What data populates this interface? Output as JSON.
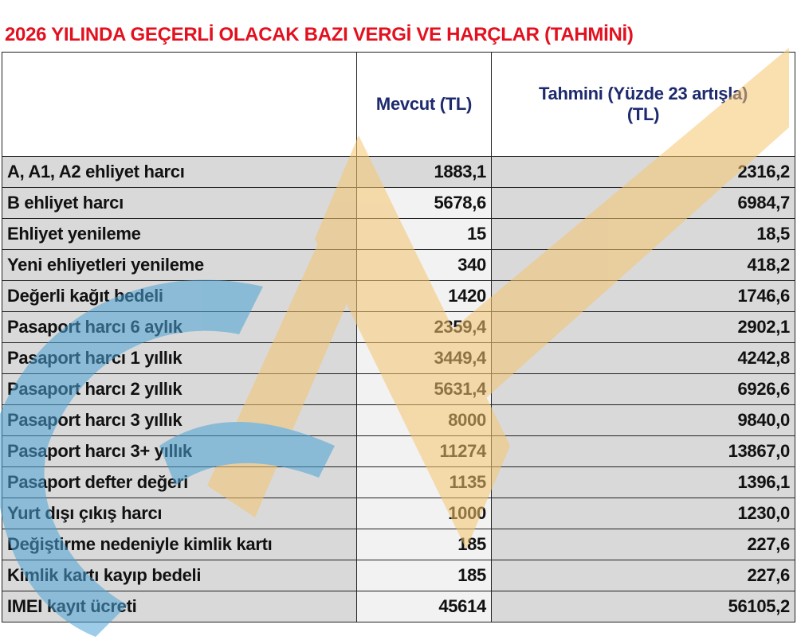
{
  "title": "2026 YILINDA GEÇERLİ OLACAK BAZI VERGİ VE HARÇLAR (TAHMİNİ)",
  "headers": {
    "label": "",
    "current": "Mevcut (TL)",
    "estimate_line1": "Tahmini  (Yüzde 23 artışla)",
    "estimate_line2": "(TL)"
  },
  "rows": [
    {
      "label": "A, A1, A2 ehliyet harcı",
      "current": "1883,1",
      "estimate": "2316,2"
    },
    {
      "label": "B ehliyet harcı",
      "current": "5678,6",
      "estimate": "6984,7"
    },
    {
      "label": "Ehliyet yenileme",
      "current": "15",
      "estimate": "18,5"
    },
    {
      "label": "Yeni ehliyetleri yenileme",
      "current": "340",
      "estimate": "418,2"
    },
    {
      "label": "Değerli kağıt bedeli",
      "current": "1420",
      "estimate": "1746,6"
    },
    {
      "label": "Pasaport harcı 6 aylık",
      "current": "2359,4",
      "estimate": "2902,1"
    },
    {
      "label": "Pasaport harcı 1 yıllık",
      "current": "3449,4",
      "estimate": "4242,8"
    },
    {
      "label": "Pasaport harcı 2 yıllık",
      "current": "5631,4",
      "estimate": "6926,6"
    },
    {
      "label": "Pasaport harcı 3 yıllık",
      "current": "8000",
      "estimate": "9840,0"
    },
    {
      "label": "Pasaport harcı 3+ yıllık",
      "current": "11274",
      "estimate": "13867,0"
    },
    {
      "label": "Pasaport defter değeri",
      "current": "1135",
      "estimate": "1396,1"
    },
    {
      "label": "Yurt dışı çıkış harcı",
      "current": "1000",
      "estimate": "1230,0"
    },
    {
      "label": "Değiştirme nedeniyle kimlik kartı",
      "current": "185",
      "estimate": "227,6"
    },
    {
      "label": "Kimlik kartı kayıp bedeli",
      "current": "185",
      "estimate": "227,6"
    },
    {
      "label": "IMEI kayıt ücreti",
      "current": "45614",
      "estimate": "56105,2"
    }
  ],
  "watermark": {
    "text": "NTV",
    "colors": [
      "#f5c56e",
      "#4aa3d4"
    ]
  }
}
